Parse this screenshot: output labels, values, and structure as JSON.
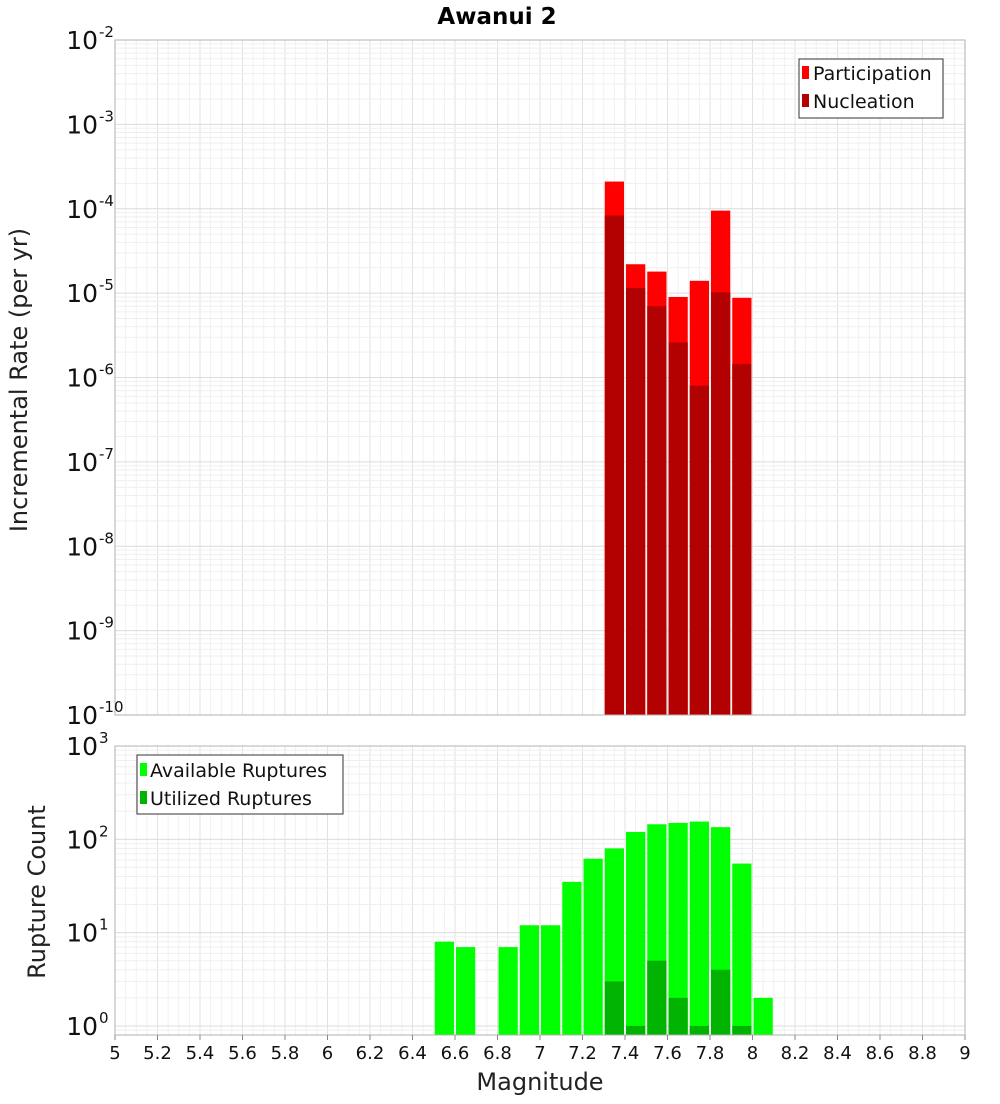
{
  "figure": {
    "title": "Awanui 2",
    "xlabel": "Magnitude"
  },
  "chart_data": [
    {
      "type": "bar",
      "panel": "rates",
      "title": "Awanui 2",
      "xlabel": "Magnitude",
      "ylabel": "Incremental Rate (per yr)",
      "yscale": "log",
      "xlim": [
        5,
        9
      ],
      "ylim": [
        1e-10,
        0.01
      ],
      "grid": true,
      "legend_position": "top-right",
      "x": [
        7.35,
        7.45,
        7.55,
        7.65,
        7.75,
        7.85,
        7.95
      ],
      "series": [
        {
          "name": "Participation",
          "color": "#ff0000",
          "values": [
            0.00021,
            2.2e-05,
            1.8e-05,
            9e-06,
            1.4e-05,
            9.5e-05,
            8.8e-06
          ]
        },
        {
          "name": "Nucleation",
          "color": "#b30000",
          "values": [
            8.3e-05,
            1.15e-05,
            7e-06,
            2.6e-06,
            8e-07,
            1.02e-05,
            1.45e-06
          ]
        }
      ],
      "y_ticks": [
        {
          "base": "10",
          "exp": "-2"
        },
        {
          "base": "10",
          "exp": "-3"
        },
        {
          "base": "10",
          "exp": "-4"
        },
        {
          "base": "10",
          "exp": "-5"
        },
        {
          "base": "10",
          "exp": "-6"
        },
        {
          "base": "10",
          "exp": "-7"
        },
        {
          "base": "10",
          "exp": "-8"
        },
        {
          "base": "10",
          "exp": "-9"
        },
        {
          "base": "10",
          "exp": "-10"
        }
      ]
    },
    {
      "type": "bar",
      "panel": "counts",
      "xlabel": "Magnitude",
      "ylabel": "Rupture Count",
      "yscale": "log",
      "xlim": [
        5,
        9
      ],
      "ylim": [
        0.8,
        1000
      ],
      "grid": true,
      "legend_position": "top-left",
      "x": [
        6.55,
        6.65,
        6.85,
        6.95,
        7.05,
        7.15,
        7.25,
        7.35,
        7.45,
        7.55,
        7.65,
        7.75,
        7.85,
        7.95,
        8.05
      ],
      "series": [
        {
          "name": "Available Ruptures",
          "color": "#00ff00",
          "values": [
            8,
            7,
            7,
            12,
            12,
            35,
            62,
            80,
            120,
            145,
            150,
            155,
            135,
            55,
            2
          ]
        },
        {
          "name": "Utilized Ruptures",
          "color": "#00b300",
          "values": [
            null,
            null,
            null,
            null,
            null,
            null,
            null,
            3,
            1,
            5,
            2,
            1,
            4,
            1,
            null
          ]
        }
      ],
      "y_ticks": [
        {
          "base": "10",
          "exp": "3"
        },
        {
          "base": "10",
          "exp": "2"
        },
        {
          "base": "10",
          "exp": "1"
        },
        {
          "base": "10",
          "exp": "0"
        }
      ]
    }
  ],
  "x_ticks": [
    "5",
    "5.2",
    "5.4",
    "5.6",
    "5.8",
    "6",
    "6.2",
    "6.4",
    "6.6",
    "6.8",
    "7",
    "7.2",
    "7.4",
    "7.6",
    "7.8",
    "8",
    "8.2",
    "8.4",
    "8.6",
    "8.8",
    "9"
  ]
}
